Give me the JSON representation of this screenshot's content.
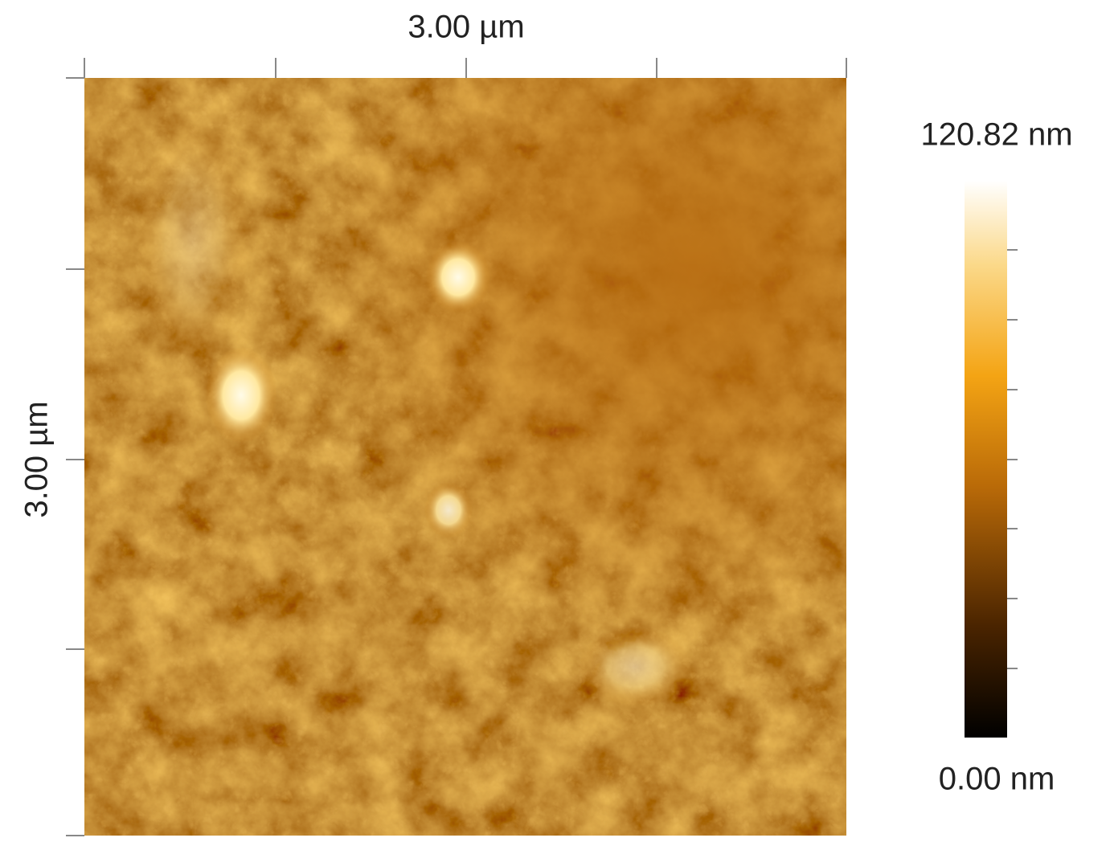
{
  "image": {
    "x_label": "3.00 µm",
    "y_label": "3.00 µm"
  },
  "colorbar": {
    "max_label": "120.82 nm",
    "min_label": "0.00 nm"
  }
}
